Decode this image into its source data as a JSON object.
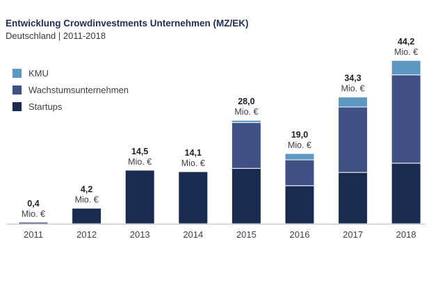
{
  "chart_data": {
    "type": "bar",
    "stacked": true,
    "title": "Entwicklung Crowdinvestments Unternehmen (MZ/EK)",
    "subtitle": "Deutschland | 2011-2018",
    "categories": [
      "2011",
      "2012",
      "2013",
      "2014",
      "2015",
      "2016",
      "2017",
      "2018"
    ],
    "series": [
      {
        "name": "Startups",
        "color": "#1b2a50",
        "values": [
          0.4,
          4.2,
          14.5,
          14.1,
          15.0,
          10.3,
          13.9,
          16.4
        ]
      },
      {
        "name": "Wachstumsunternehmen",
        "color": "#3f5083",
        "values": [
          0,
          0,
          0,
          0,
          12.4,
          7.0,
          17.7,
          23.9
        ]
      },
      {
        "name": "KMU",
        "color": "#5e97c1",
        "values": [
          0,
          0,
          0,
          0,
          0.6,
          1.7,
          2.7,
          3.9
        ]
      }
    ],
    "totals": [
      "0,4",
      "4,2",
      "14,5",
      "14,1",
      "28,0",
      "19,0",
      "34,3",
      "44,2"
    ],
    "unit_label": "Mio. €",
    "legend_order": [
      "KMU",
      "Wachstumsunternehmen",
      "Startups"
    ],
    "legend_position": "top-left",
    "ylim": [
      0,
      50
    ],
    "grid": false
  }
}
